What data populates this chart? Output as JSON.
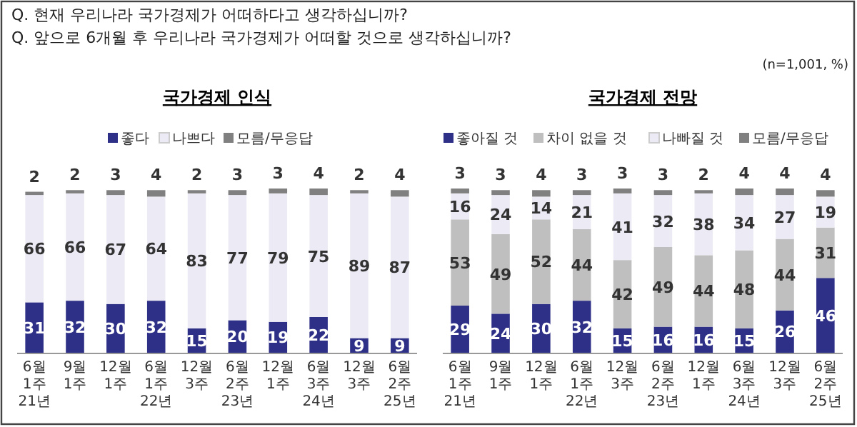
{
  "chart_data": [
    {
      "type": "bar",
      "stacked": true,
      "data_labels": true,
      "legend": "top",
      "title": "국가경제 인식",
      "annotations": [
        "Q. 현재 우리나라 국가경제가 어떠하다고 생각하십니까?",
        "Q. 앞으로 6개월 후 우리나라 국가경제가 어떠할 것으로 생각하십니까?",
        "(n=1,001, %)"
      ],
      "categories": [
        "6월 1주 21년",
        "9월 1주",
        "12월 1주",
        "6월 1주 22년",
        "12월 3주",
        "6월 2주 23년",
        "12월 1주",
        "6월 3주 24년",
        "12월 3주",
        "6월 2주 25년"
      ],
      "series": [
        {
          "name": "좋다",
          "color": "#2e3087",
          "values": [
            31,
            32,
            30,
            32,
            15,
            20,
            19,
            22,
            9,
            9
          ]
        },
        {
          "name": "나쁘다",
          "color": "#ecebf5",
          "values": [
            66,
            66,
            67,
            64,
            83,
            77,
            79,
            75,
            89,
            87
          ]
        },
        {
          "name": "모름/무응답",
          "color": "#808080",
          "values": [
            2,
            2,
            3,
            4,
            2,
            3,
            3,
            4,
            2,
            4
          ]
        }
      ]
    },
    {
      "type": "bar",
      "stacked": true,
      "data_labels": true,
      "legend": "top",
      "title": "국가경제 전망",
      "categories": [
        "6월 1주 21년",
        "9월 1주",
        "12월 1주",
        "6월 1주 22년",
        "12월 3주",
        "6월 2주 23년",
        "12월 1주",
        "6월 3주 24년",
        "12월 3주",
        "6월 2주 25년"
      ],
      "series": [
        {
          "name": "좋아질 것",
          "color": "#2e3087",
          "values": [
            29,
            24,
            30,
            32,
            15,
            16,
            16,
            15,
            26,
            46
          ]
        },
        {
          "name": "차이 없을 것",
          "color": "#bfbfbf",
          "values": [
            53,
            49,
            52,
            44,
            42,
            49,
            44,
            48,
            44,
            31
          ]
        },
        {
          "name": "나빠질 것",
          "color": "#ecebf5",
          "values": [
            16,
            24,
            14,
            21,
            41,
            32,
            38,
            34,
            27,
            19
          ]
        },
        {
          "name": "모름/무응답",
          "color": "#808080",
          "values": [
            3,
            3,
            4,
            3,
            3,
            3,
            2,
            4,
            4,
            4
          ]
        }
      ]
    }
  ]
}
